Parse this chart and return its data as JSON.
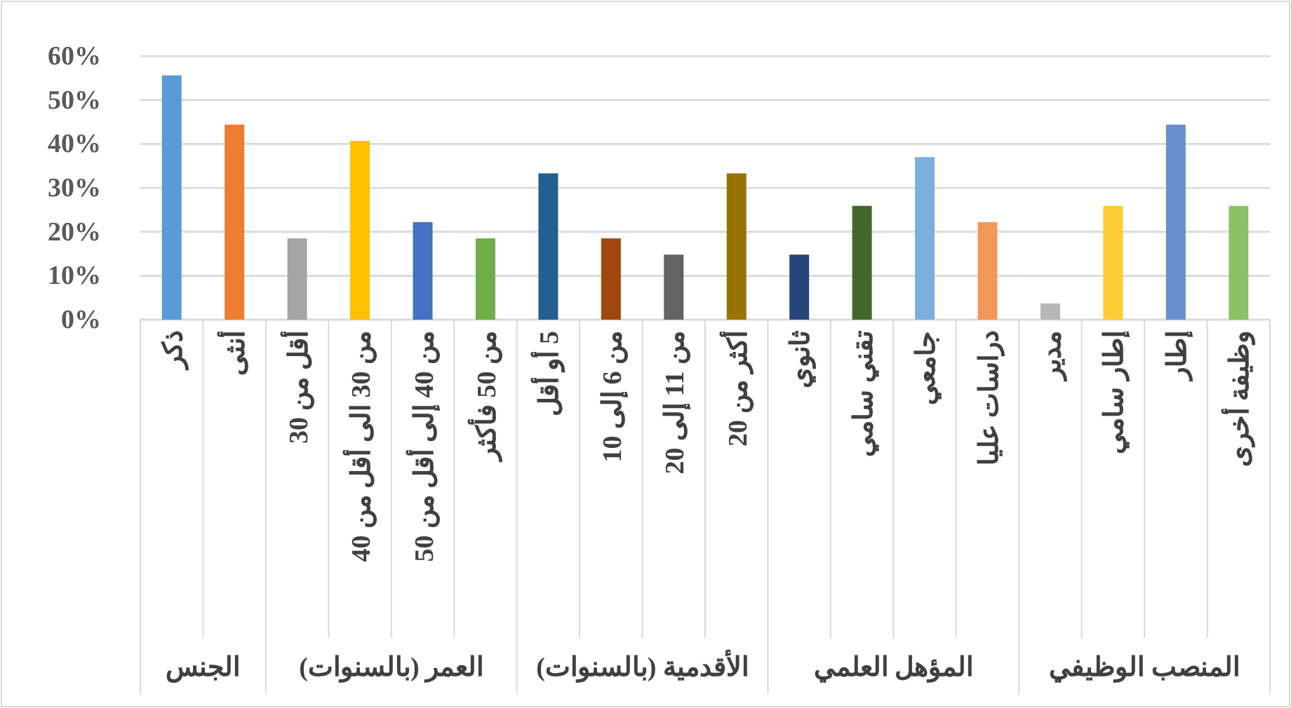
{
  "chart_data": [
    {
      "type": "bar",
      "xlabel": "الجنس",
      "categories": [
        "ذكر",
        "أنثى"
      ],
      "values": [
        55.6,
        44.4
      ],
      "colors": [
        "#5b9bd5",
        "#ed7d31"
      ],
      "ylim": [
        0,
        60
      ],
      "yticks": [
        {
          "value": 0,
          "label": "0%"
        },
        {
          "value": 10,
          "label": "10%"
        },
        {
          "value": 20,
          "label": "20%"
        },
        {
          "value": 30,
          "label": "30%"
        },
        {
          "value": 40,
          "label": "40%"
        },
        {
          "value": 50,
          "label": "50%"
        },
        {
          "value": 60,
          "label": "60%"
        }
      ],
      "grid": "y"
    },
    {
      "type": "bar",
      "xlabel": "العمر  (بالسنوات)",
      "categories": [
        "أقل من 30",
        "من 30 الى أقل من 40",
        "من 40 إلى أقل من 50",
        "من 50 فأكثر"
      ],
      "values": [
        18.5,
        40.7,
        22.2,
        18.5
      ],
      "colors": [
        "#a5a5a5",
        "#ffc000",
        "#4472c4",
        "#70ad47"
      ],
      "ylim": [
        0,
        60
      ],
      "yticks": [
        0,
        10,
        20,
        30,
        40,
        50,
        60
      ],
      "grid": "y",
      "tick_labels": "x"
    },
    {
      "type": "bar",
      "xlabel": "الأقدمية (بالسنوات)",
      "categories": [
        "5 أو أقل",
        "من 6 إلى 10",
        "من 11 إلى 20",
        "أكثر من 20"
      ],
      "values": [
        33.3,
        18.5,
        14.8,
        33.3
      ],
      "colors": [
        "#255e91",
        "#9e480e",
        "#636363",
        "#997300"
      ],
      "ylim": [
        0,
        60
      ],
      "yticks": [
        0,
        10,
        20,
        30,
        40,
        50,
        60
      ],
      "grid": "y",
      "tick_labels": "x"
    },
    {
      "type": "bar",
      "xlabel": "المؤهل العلمي",
      "categories": [
        "ثانوي",
        "تقني سامي",
        "جامعي",
        "دراسات عليا"
      ],
      "values": [
        14.8,
        25.9,
        37.0,
        22.2
      ],
      "colors": [
        "#264478",
        "#43682b",
        "#7cafdd",
        "#f1975a"
      ],
      "ylim": [
        0,
        60
      ],
      "yticks": [
        0,
        10,
        20,
        30,
        40,
        50,
        60
      ],
      "grid": "y",
      "tick_labels": "x"
    },
    {
      "type": "bar",
      "xlabel": "المنصب الوظيفي",
      "categories": [
        "مدير",
        "إطار سامي",
        "إطار",
        "وظيفة أخرى"
      ],
      "values": [
        3.7,
        25.9,
        44.4,
        25.9
      ],
      "colors": [
        "#b7b7b7",
        "#ffcd33",
        "#698ed0",
        "#8cc168"
      ],
      "ylim": [
        0,
        60
      ],
      "yticks": [
        0,
        10,
        20,
        30,
        40,
        50,
        60
      ],
      "grid": "y",
      "tick_labels": "x"
    }
  ]
}
